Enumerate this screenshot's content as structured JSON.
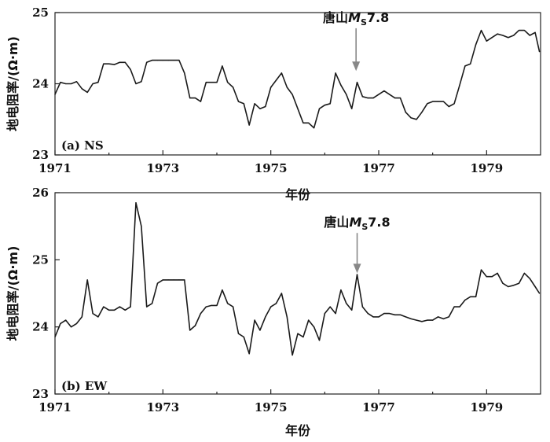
{
  "chart_data": [
    {
      "type": "line",
      "panel_label": "(a) NS",
      "xlabel": "年份",
      "ylabel": "地电阻率/(Ω·m)",
      "xlim": [
        1971,
        1980
      ],
      "ylim": [
        23,
        25
      ],
      "xticks": [
        1971,
        1973,
        1975,
        1977,
        1979
      ],
      "yticks": [
        23,
        24,
        25
      ],
      "annotation": {
        "text_main": "唐山",
        "text_M": "M",
        "text_sub": "S",
        "text_mag": "7.8",
        "x": 1976.58,
        "y_top": 24.78,
        "y_tip": 24.18
      },
      "series": [
        {
          "x": [
            1971.0,
            1971.1,
            1971.2,
            1971.3,
            1971.4,
            1971.5,
            1971.6,
            1971.7,
            1971.8,
            1971.9,
            1972.0,
            1972.1,
            1972.2,
            1972.3,
            1972.4,
            1972.5,
            1972.6,
            1972.7,
            1972.8,
            1972.9,
            1973.0,
            1973.1,
            1973.2,
            1973.3,
            1973.4,
            1973.5,
            1973.6,
            1973.7,
            1973.8,
            1973.9,
            1974.0,
            1974.1,
            1974.2,
            1974.3,
            1974.4,
            1974.5,
            1974.6,
            1974.7,
            1974.8,
            1974.9,
            1975.0,
            1975.1,
            1975.2,
            1975.3,
            1975.4,
            1975.5,
            1975.6,
            1975.7,
            1975.8,
            1975.9,
            1976.0,
            1976.1,
            1976.2,
            1976.3,
            1976.4,
            1976.5,
            1976.6,
            1976.7,
            1976.8,
            1976.9,
            1977.0,
            1977.1,
            1977.2,
            1977.3,
            1977.4,
            1977.5,
            1977.6,
            1977.7,
            1977.8,
            1977.9,
            1978.0,
            1978.1,
            1978.2,
            1978.3,
            1978.4,
            1978.5,
            1978.6,
            1978.7,
            1978.8,
            1978.9,
            1979.0,
            1979.1,
            1979.2,
            1979.3,
            1979.4,
            1979.5,
            1979.6,
            1979.7,
            1979.8,
            1979.9,
            1979.98
          ],
          "values": [
            23.85,
            24.02,
            24.0,
            24.0,
            24.03,
            23.93,
            23.88,
            24.0,
            24.02,
            24.28,
            24.28,
            24.27,
            24.3,
            24.3,
            24.2,
            24.0,
            24.03,
            24.3,
            24.33,
            24.33,
            24.33,
            24.33,
            24.33,
            24.33,
            24.15,
            23.8,
            23.8,
            23.75,
            24.02,
            24.02,
            24.02,
            24.25,
            24.02,
            23.95,
            23.75,
            23.72,
            23.42,
            23.72,
            23.65,
            23.68,
            23.95,
            24.05,
            24.15,
            23.95,
            23.85,
            23.65,
            23.45,
            23.45,
            23.38,
            23.65,
            23.7,
            23.72,
            24.15,
            23.98,
            23.85,
            23.65,
            24.02,
            23.82,
            23.8,
            23.8,
            23.85,
            23.9,
            23.85,
            23.8,
            23.8,
            23.6,
            23.52,
            23.5,
            23.6,
            23.72,
            23.75,
            23.75,
            23.75,
            23.68,
            23.72,
            23.98,
            24.25,
            24.28,
            24.55,
            24.75,
            24.6,
            24.65,
            24.7,
            24.68,
            24.65,
            24.68,
            24.75,
            24.75,
            24.68,
            24.72,
            24.45
          ]
        }
      ]
    },
    {
      "type": "line",
      "panel_label": "(b) EW",
      "xlabel": "年份",
      "ylabel": "地电阻率/(Ω·m)",
      "xlim": [
        1971,
        1980
      ],
      "ylim": [
        23,
        26
      ],
      "xticks": [
        1971,
        1973,
        1975,
        1977,
        1979
      ],
      "yticks": [
        23,
        24,
        25,
        26
      ],
      "annotation": {
        "text_main": "唐山",
        "text_M": "M",
        "text_sub": "S",
        "text_mag": "7.8",
        "x": 1976.6,
        "y_top": 25.4,
        "y_tip": 24.8
      },
      "series": [
        {
          "x": [
            1971.0,
            1971.1,
            1971.2,
            1971.3,
            1971.4,
            1971.5,
            1971.6,
            1971.7,
            1971.8,
            1971.9,
            1972.0,
            1972.1,
            1972.2,
            1972.3,
            1972.4,
            1972.5,
            1972.6,
            1972.7,
            1972.8,
            1972.9,
            1973.0,
            1973.1,
            1973.2,
            1973.3,
            1973.4,
            1973.5,
            1973.6,
            1973.7,
            1973.8,
            1973.9,
            1974.0,
            1974.1,
            1974.2,
            1974.3,
            1974.4,
            1974.5,
            1974.6,
            1974.7,
            1974.8,
            1974.9,
            1975.0,
            1975.1,
            1975.2,
            1975.3,
            1975.4,
            1975.5,
            1975.6,
            1975.7,
            1975.8,
            1975.9,
            1976.0,
            1976.1,
            1976.2,
            1976.3,
            1976.4,
            1976.5,
            1976.6,
            1976.7,
            1976.8,
            1976.9,
            1977.0,
            1977.1,
            1977.2,
            1977.3,
            1977.4,
            1977.5,
            1977.6,
            1977.7,
            1977.8,
            1977.9,
            1978.0,
            1978.1,
            1978.2,
            1978.3,
            1978.4,
            1978.5,
            1978.6,
            1978.7,
            1978.8,
            1978.9,
            1979.0,
            1979.1,
            1979.2,
            1979.3,
            1979.4,
            1979.5,
            1979.6,
            1979.7,
            1979.8,
            1979.9,
            1979.98
          ],
          "values": [
            23.85,
            24.05,
            24.1,
            24.0,
            24.05,
            24.15,
            24.7,
            24.2,
            24.15,
            24.3,
            24.25,
            24.25,
            24.3,
            24.25,
            24.3,
            25.85,
            25.5,
            24.3,
            24.35,
            24.65,
            24.7,
            24.7,
            24.7,
            24.7,
            24.7,
            23.95,
            24.02,
            24.2,
            24.3,
            24.32,
            24.32,
            24.55,
            24.35,
            24.3,
            23.9,
            23.85,
            23.6,
            24.1,
            23.95,
            24.15,
            24.3,
            24.35,
            24.5,
            24.15,
            23.58,
            23.9,
            23.85,
            24.1,
            24.0,
            23.8,
            24.2,
            24.3,
            24.2,
            24.55,
            24.35,
            24.25,
            24.78,
            24.3,
            24.2,
            24.15,
            24.15,
            24.2,
            24.2,
            24.18,
            24.18,
            24.15,
            24.12,
            24.1,
            24.08,
            24.1,
            24.1,
            24.15,
            24.12,
            24.15,
            24.3,
            24.3,
            24.4,
            24.45,
            24.45,
            24.85,
            24.75,
            24.75,
            24.8,
            24.65,
            24.6,
            24.62,
            24.65,
            24.8,
            24.72,
            24.6,
            24.5
          ]
        }
      ]
    }
  ]
}
